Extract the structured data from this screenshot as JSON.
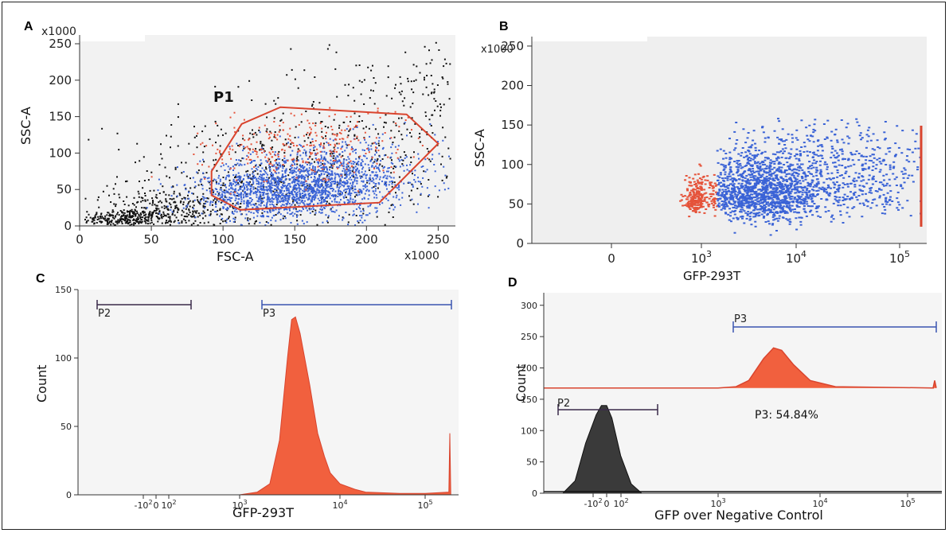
{
  "colors": {
    "gated": "#3a63d6",
    "red": "#e5533a",
    "black": "#111111",
    "gate_line": "#d9442e",
    "panel_bg": "#e9e9e9"
  },
  "panels": {
    "A": {
      "letter": "A",
      "xlabel": "FSC-A",
      "ylabel": "SSC-A",
      "xmult": "x1000",
      "ymult": "x1000",
      "gate_label": "P1",
      "xticks": [
        "0",
        "50",
        "100",
        "150",
        "200",
        "250"
      ],
      "yticks": [
        "0",
        "50",
        "100",
        "150",
        "200",
        "250"
      ]
    },
    "B": {
      "letter": "B",
      "xlabel": "GFP-293T",
      "ylabel": "SSC-A",
      "ymult": "x1000",
      "xticks": [
        "0",
        "10",
        "10",
        "10"
      ],
      "xexps": [
        "",
        "3",
        "4",
        "5"
      ],
      "yticks": [
        "0",
        "50",
        "100",
        "150",
        "200",
        "250"
      ]
    },
    "C": {
      "letter": "C",
      "xlabel": "GFP-293T",
      "ylabel": "Count",
      "gate_p2": "P2",
      "gate_p3": "P3",
      "xticks": [
        "-10",
        "0",
        "10",
        "10",
        "10",
        "10"
      ],
      "xexps": [
        "2",
        "",
        "2",
        "3",
        "4",
        "5"
      ],
      "yticks": [
        "0",
        "50",
        "100",
        "150"
      ]
    },
    "D": {
      "letter": "D",
      "xlabel": "GFP over Negative Control",
      "ylabel": "Count",
      "gate_p2": "P2",
      "gate_p3": "P3",
      "annotation": "P3: 54.84%",
      "xticks": [
        "-10",
        "0",
        "10",
        "10",
        "10",
        "10"
      ],
      "xexps": [
        "2",
        "",
        "2",
        "3",
        "4",
        "5"
      ],
      "yticks": [
        "0",
        "50",
        "100",
        "150",
        "200",
        "250",
        "300"
      ]
    }
  },
  "chart_data": [
    {
      "type": "scatter",
      "panel": "A",
      "xlabel": "FSC-A",
      "ylabel": "SSC-A",
      "xlim": [
        0,
        262
      ],
      "ylim": [
        0,
        262
      ],
      "units": "x1000",
      "gates": [
        {
          "name": "P1",
          "polygon": [
            [
              112,
              22
            ],
            [
              92,
              42
            ],
            [
              92,
              75
            ],
            [
              113,
              140
            ],
            [
              140,
              163
            ],
            [
              228,
              153
            ],
            [
              250,
              113
            ],
            [
              209,
              32
            ]
          ]
        }
      ],
      "series": [
        {
          "color": "black",
          "clusters": [
            [
              30,
              10,
              14,
              7
            ],
            [
              60,
              20,
              22,
              14
            ],
            [
              120,
              60,
              50,
              45
            ],
            [
              200,
              130,
              45,
              55
            ],
            [
              250,
              200,
              10,
              40
            ]
          ]
        },
        {
          "color": "blue",
          "clusters": [
            [
              150,
              55,
              32,
              20
            ],
            [
              180,
              70,
              35,
              25
            ],
            [
              130,
              40,
              25,
              15
            ]
          ]
        },
        {
          "color": "red",
          "clusters": [
            [
              170,
              120,
              35,
              22
            ],
            [
              140,
              95,
              25,
              18
            ]
          ]
        }
      ]
    },
    {
      "type": "scatter",
      "panel": "B",
      "xlabel": "GFP-293T",
      "ylabel": "SSC-A",
      "ylim": [
        0,
        262
      ],
      "units": "x1000",
      "xscale": "biexponential",
      "xticks": [
        0,
        1000,
        10000,
        100000
      ],
      "series": [
        {
          "color": "red",
          "clusters": [
            [
              2.85,
              55,
              0.22,
              15
            ]
          ]
        },
        {
          "color": "blue",
          "clusters": [
            [
              3.55,
              60,
              0.3,
              30
            ],
            [
              4.3,
              75,
              0.5,
              40
            ]
          ]
        }
      ]
    },
    {
      "type": "area",
      "panel": "C",
      "xlabel": "GFP-293T",
      "ylabel": "Count",
      "ylim": [
        0,
        150
      ],
      "xscale": "biexponential",
      "gates": [
        {
          "name": "P2",
          "range": [
            -300,
            200
          ]
        },
        {
          "name": "P3",
          "range": [
            1500,
            200000
          ]
        }
      ],
      "x": [
        1000,
        1500,
        2000,
        2500,
        3000,
        3300,
        3600,
        4000,
        5000,
        6000,
        7000,
        8000,
        10000,
        15000,
        20000,
        50000,
        100000,
        190000,
        195000,
        200000
      ],
      "values": [
        0,
        2,
        8,
        40,
        100,
        128,
        130,
        118,
        80,
        45,
        28,
        16,
        8,
        4,
        2,
        1,
        1,
        2,
        45,
        0
      ]
    },
    {
      "type": "area",
      "panel": "D",
      "xlabel": "GFP over Negative Control",
      "ylabel": "Count",
      "ylim": [
        0,
        320
      ],
      "xscale": "biexponential",
      "annotation": "P3: 54.84%",
      "gates": [
        {
          "name": "P2",
          "range": [
            -300,
            250
          ]
        },
        {
          "name": "P3",
          "range": [
            1500,
            200000
          ]
        }
      ],
      "series": [
        {
          "name": "",
          "color": "black",
          "x": [
            -250,
            -180,
            -120,
            -60,
            -30,
            0,
            30,
            80,
            140,
            200
          ],
          "values": [
            0,
            20,
            80,
            125,
            140,
            140,
            120,
            60,
            15,
            0
          ]
        },
        {
          "name": "",
          "color": "red",
          "baseline": 168,
          "x": [
            1000,
            1500,
            2000,
            2800,
            3500,
            4200,
            5500,
            8000,
            15000,
            200000
          ],
          "values": [
            168,
            170,
            180,
            215,
            232,
            228,
            205,
            180,
            170,
            168
          ]
        }
      ]
    }
  ]
}
